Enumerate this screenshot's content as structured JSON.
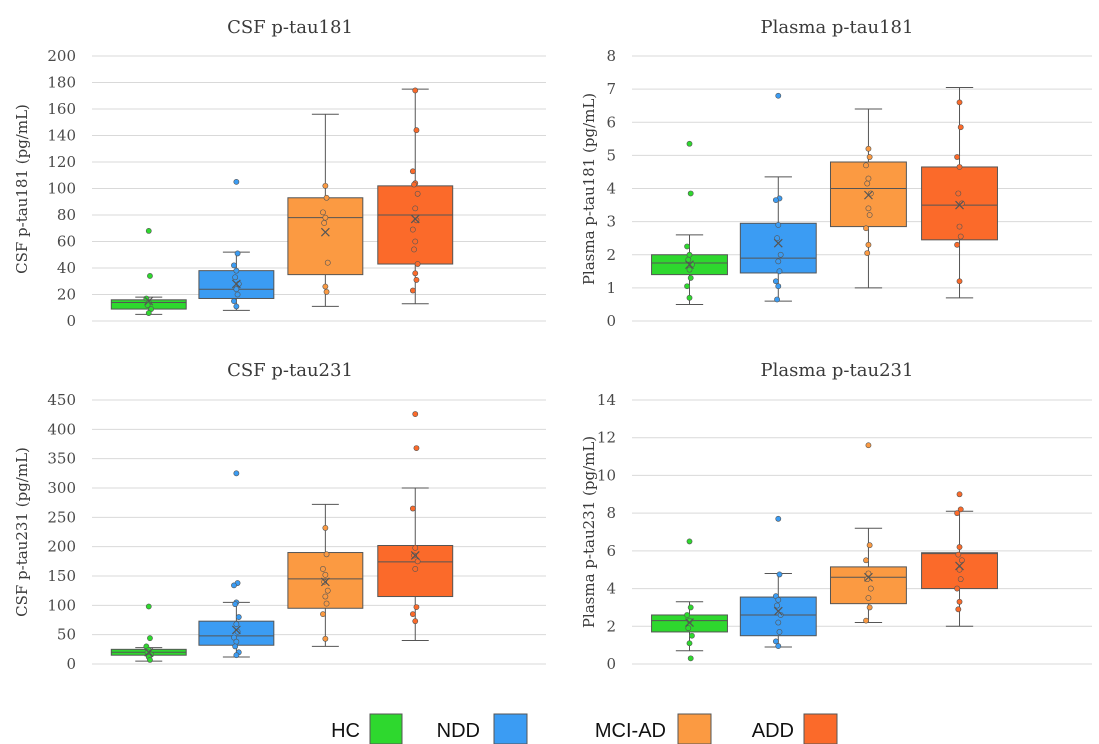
{
  "groups": [
    {
      "name": "HC",
      "color": "#2ed82e"
    },
    {
      "name": "NDD",
      "color": "#3b9cf3"
    },
    {
      "name": "MCI-AD",
      "color": "#fb9a42"
    },
    {
      "name": "ADD",
      "color": "#fb6a2a"
    }
  ],
  "legend": {
    "placement": "bottom"
  },
  "chart_data": [
    {
      "type": "box",
      "title": "CSF p-tau181",
      "ylabel": "CSF p-tau181 (pg/mL)",
      "ylim": [
        0,
        200
      ],
      "yticks": [
        0,
        20,
        40,
        60,
        80,
        100,
        120,
        140,
        160,
        180,
        200
      ],
      "grid": true,
      "series": [
        {
          "name": "HC",
          "min": 5,
          "q1": 9,
          "median": 14,
          "q3": 16,
          "max": 18,
          "mean": 15,
          "points": [
            68,
            34,
            17,
            14,
            12,
            9,
            6
          ]
        },
        {
          "name": "NDD",
          "min": 8,
          "q1": 17,
          "median": 24,
          "q3": 38,
          "max": 52,
          "mean": 28,
          "points": [
            105,
            51,
            42,
            38,
            33,
            28,
            24,
            20,
            15,
            11
          ]
        },
        {
          "name": "MCI-AD",
          "min": 11,
          "q1": 35,
          "median": 78,
          "q3": 93,
          "max": 156,
          "mean": 67,
          "points": [
            102,
            93,
            82,
            78,
            74,
            44,
            26,
            22
          ]
        },
        {
          "name": "ADD",
          "min": 13,
          "q1": 43,
          "median": 80,
          "q3": 102,
          "max": 175,
          "mean": 77,
          "points": [
            174,
            144,
            113,
            104,
            103,
            96,
            85,
            76,
            69,
            60,
            54,
            43,
            36,
            31,
            23
          ]
        }
      ]
    },
    {
      "type": "box",
      "title": "Plasma p-tau181",
      "ylabel": "Plasma p-tau181 (pg/mL)",
      "ylim": [
        0,
        8
      ],
      "yticks": [
        0,
        1,
        2,
        3,
        4,
        5,
        6,
        7,
        8
      ],
      "grid": true,
      "series": [
        {
          "name": "HC",
          "min": 0.5,
          "q1": 1.4,
          "median": 1.75,
          "q3": 2.0,
          "max": 2.6,
          "mean": 1.7,
          "points": [
            5.35,
            3.85,
            2.25,
            2.0,
            1.85,
            1.7,
            1.55,
            1.3,
            1.05,
            0.7
          ]
        },
        {
          "name": "NDD",
          "min": 0.6,
          "q1": 1.45,
          "median": 1.9,
          "q3": 2.95,
          "max": 4.35,
          "mean": 2.35,
          "points": [
            6.8,
            3.7,
            3.65,
            2.9,
            2.5,
            2.0,
            1.8,
            1.5,
            1.2,
            1.05,
            0.65
          ]
        },
        {
          "name": "MCI-AD",
          "min": 1.0,
          "q1": 2.85,
          "median": 4.0,
          "q3": 4.8,
          "max": 6.4,
          "mean": 3.8,
          "points": [
            5.2,
            4.95,
            4.7,
            4.3,
            4.15,
            3.85,
            3.4,
            3.2,
            2.8,
            2.3,
            2.05
          ]
        },
        {
          "name": "ADD",
          "min": 0.7,
          "q1": 2.45,
          "median": 3.5,
          "q3": 4.65,
          "max": 7.05,
          "mean": 3.5,
          "points": [
            6.6,
            5.85,
            4.95,
            4.65,
            3.85,
            3.55,
            2.85,
            2.55,
            2.3,
            1.2
          ]
        }
      ]
    },
    {
      "type": "box",
      "title": "CSF p-tau231",
      "ylabel": "CSF p-tau231 (pg/mL)",
      "ylim": [
        0,
        450
      ],
      "yticks": [
        0,
        50,
        100,
        150,
        200,
        250,
        300,
        350,
        400,
        450
      ],
      "grid": true,
      "series": [
        {
          "name": "HC",
          "min": 5,
          "q1": 15,
          "median": 20,
          "q3": 25,
          "max": 28,
          "mean": 20,
          "points": [
            98,
            44,
            30,
            24,
            20,
            16,
            12,
            7
          ]
        },
        {
          "name": "NDD",
          "min": 12,
          "q1": 32,
          "median": 48,
          "q3": 73,
          "max": 105,
          "mean": 58,
          "points": [
            325,
            138,
            134,
            105,
            102,
            80,
            68,
            55,
            45,
            38,
            30,
            20,
            15
          ]
        },
        {
          "name": "MCI-AD",
          "min": 30,
          "q1": 95,
          "median": 145,
          "q3": 190,
          "max": 272,
          "mean": 140,
          "points": [
            232,
            187,
            162,
            152,
            140,
            125,
            115,
            103,
            85,
            43
          ]
        },
        {
          "name": "ADD",
          "min": 40,
          "q1": 115,
          "median": 174,
          "q3": 202,
          "max": 300,
          "mean": 185,
          "points": [
            426,
            368,
            265,
            198,
            185,
            175,
            162,
            97,
            85,
            73
          ]
        }
      ]
    },
    {
      "type": "box",
      "title": "Plasma p-tau231",
      "ylabel": "Plasma p-tau231 (pg/mL)",
      "ylim": [
        0,
        14
      ],
      "yticks": [
        0,
        2,
        4,
        6,
        8,
        10,
        12,
        14
      ],
      "grid": true,
      "series": [
        {
          "name": "HC",
          "min": 0.7,
          "q1": 1.7,
          "median": 2.3,
          "q3": 2.6,
          "max": 3.3,
          "mean": 2.2,
          "points": [
            6.5,
            3.0,
            2.6,
            2.3,
            1.9,
            1.5,
            1.1,
            0.3
          ]
        },
        {
          "name": "NDD",
          "min": 0.9,
          "q1": 1.5,
          "median": 2.6,
          "q3": 3.55,
          "max": 4.8,
          "mean": 2.8,
          "points": [
            7.7,
            4.75,
            3.6,
            3.4,
            3.1,
            2.6,
            2.2,
            1.7,
            1.2,
            0.95
          ]
        },
        {
          "name": "MCI-AD",
          "min": 2.2,
          "q1": 3.2,
          "median": 4.6,
          "q3": 5.15,
          "max": 7.2,
          "mean": 4.6,
          "points": [
            11.6,
            6.3,
            5.5,
            4.8,
            4.5,
            4.0,
            3.5,
            3.0,
            2.3
          ]
        },
        {
          "name": "ADD",
          "min": 2.0,
          "q1": 4.0,
          "median": 5.85,
          "q3": 5.9,
          "max": 8.1,
          "mean": 5.2,
          "points": [
            9.0,
            8.2,
            8.0,
            6.2,
            5.8,
            5.5,
            5.0,
            4.5,
            4.0,
            3.3,
            2.9
          ]
        }
      ]
    }
  ]
}
